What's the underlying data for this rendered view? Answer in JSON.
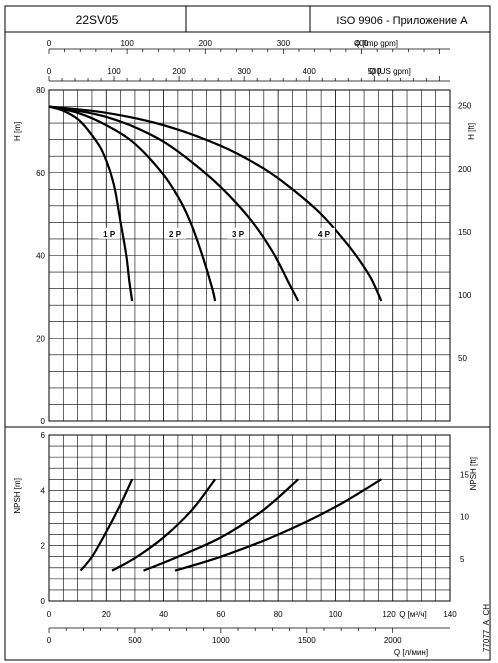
{
  "header": {
    "model": "22SV05",
    "standard": "ISO 9906 - Приложение A"
  },
  "side_code": "77077_A_CH",
  "chart_data": [
    {
      "type": "line",
      "panel": "head",
      "ylabel": "H [m]",
      "ylabel_right": "H [ft]",
      "xlim": [
        0,
        140
      ],
      "ylim": [
        0,
        80
      ],
      "y_ticks": [
        0,
        20,
        40,
        60,
        80
      ],
      "y_ticks_right": [
        50,
        100,
        150,
        200,
        250
      ],
      "top_axes": [
        {
          "label": "Q [Imp gpm]",
          "ticks": [
            0,
            100,
            200,
            300,
            400
          ]
        },
        {
          "label": "Q [US gpm]",
          "ticks": [
            0,
            100,
            200,
            300,
            400,
            500
          ]
        }
      ],
      "series": [
        {
          "name": "1 P",
          "x": [
            0,
            5,
            10,
            14,
            18,
            21,
            23,
            25,
            27,
            28,
            29
          ],
          "y": [
            76,
            75,
            73,
            70,
            66,
            61,
            56,
            48,
            40,
            34,
            29
          ]
        },
        {
          "name": "2 P",
          "x": [
            0,
            10,
            20,
            30,
            40,
            46,
            50,
            54,
            57,
            58
          ],
          "y": [
            76,
            74.5,
            71.5,
            67,
            59.5,
            53,
            47,
            39,
            32,
            29
          ]
        },
        {
          "name": "3 P",
          "x": [
            0,
            10,
            20,
            30,
            40,
            50,
            60,
            70,
            78,
            84,
            87
          ],
          "y": [
            76,
            75,
            73.5,
            71,
            67.5,
            62.5,
            56.5,
            49,
            41,
            33,
            29
          ]
        },
        {
          "name": "4 P",
          "x": [
            0,
            20,
            40,
            60,
            75,
            85,
            95,
            105,
            112,
            116
          ],
          "y": [
            76,
            74.5,
            71.5,
            66.5,
            61,
            56,
            50,
            42,
            35,
            29
          ]
        }
      ]
    },
    {
      "type": "line",
      "panel": "npsh",
      "ylabel": "NPSH [m]",
      "ylabel_right": "NPSH [ft]",
      "xlabel": "Q [м³/ч]",
      "xlabel_bottom": "Q [л/мин]",
      "xlim": [
        0,
        140
      ],
      "ylim": [
        0,
        6
      ],
      "y_ticks": [
        0,
        2,
        4,
        6
      ],
      "y_ticks_right": [
        5,
        10,
        15
      ],
      "x_ticks": [
        0,
        20,
        40,
        60,
        80,
        100,
        120,
        140
      ],
      "x_ticks_bottom": [
        0,
        500,
        1000,
        1500,
        2000
      ],
      "series": [
        {
          "name": "1 P",
          "x": [
            11,
            15,
            20,
            25,
            29
          ],
          "y": [
            1.1,
            1.6,
            2.5,
            3.5,
            4.4
          ]
        },
        {
          "name": "2 P",
          "x": [
            22,
            30,
            40,
            50,
            58
          ],
          "y": [
            1.1,
            1.55,
            2.3,
            3.3,
            4.4
          ]
        },
        {
          "name": "3 P",
          "x": [
            33,
            45,
            60,
            75,
            87
          ],
          "y": [
            1.1,
            1.6,
            2.3,
            3.3,
            4.4
          ]
        },
        {
          "name": "4 P",
          "x": [
            44,
            60,
            80,
            100,
            116
          ],
          "y": [
            1.1,
            1.6,
            2.4,
            3.4,
            4.4
          ]
        }
      ]
    }
  ]
}
